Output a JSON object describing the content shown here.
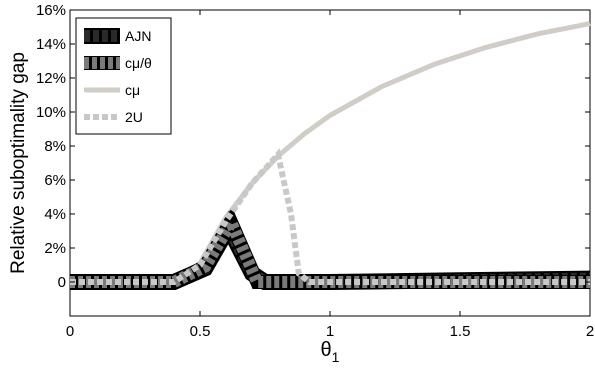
{
  "chart_data": {
    "type": "line",
    "title": "",
    "xlabel": "θ",
    "xlabel_sub": "1",
    "ylabel": "Relative suboptimality gap",
    "xlim": [
      0,
      2
    ],
    "ylim": [
      -0.02,
      0.16
    ],
    "x_ticks": [
      "0",
      "0.5",
      "1",
      "1.5",
      "2"
    ],
    "x_tick_values": [
      0,
      0.5,
      1,
      1.5,
      2
    ],
    "y_ticks": [
      "0",
      "2%",
      "4%",
      "6%",
      "8%",
      "10%",
      "12%",
      "14%",
      "16%"
    ],
    "y_tick_values": [
      0,
      0.02,
      0.04,
      0.06,
      0.08,
      0.1,
      0.12,
      0.14,
      0.16
    ],
    "grid": false,
    "legend_position": "top-left",
    "series": [
      {
        "name": "AJN",
        "style": "solid-thick",
        "color": "#000000",
        "x": [
          0,
          0.4,
          0.52,
          0.61,
          0.7,
          0.75,
          1.0,
          1.5,
          2.0
        ],
        "y": [
          0,
          0,
          0.008,
          0.032,
          0.005,
          0,
          0,
          0.001,
          0.002
        ]
      },
      {
        "name": "cμ/θ",
        "style": "dashed-thick",
        "color": "#7a7a7a",
        "x": [
          0,
          0.4,
          0.52,
          0.62,
          0.72,
          1.0,
          1.5,
          2.0
        ],
        "y": [
          0,
          0,
          0.009,
          0.035,
          0,
          0,
          0,
          0
        ]
      },
      {
        "name": "cμ",
        "style": "solid",
        "color": "#d0cdc6",
        "x": [
          0.42,
          0.5,
          0.6,
          0.7,
          0.8,
          0.9,
          1.0,
          1.2,
          1.4,
          1.6,
          1.8,
          2.0
        ],
        "y": [
          0.0,
          0.011,
          0.038,
          0.058,
          0.074,
          0.087,
          0.098,
          0.115,
          0.128,
          0.138,
          0.146,
          0.152
        ]
      },
      {
        "name": "2U",
        "style": "dotted-thick",
        "color": "#c8c8c8",
        "x": [
          0,
          0.4,
          0.5,
          0.6,
          0.7,
          0.8,
          0.85,
          0.88,
          0.92,
          1.0,
          1.5,
          2.0
        ],
        "y": [
          0,
          0,
          0.01,
          0.036,
          0.058,
          0.075,
          0.04,
          0.005,
          0,
          0,
          0,
          0
        ]
      }
    ]
  }
}
